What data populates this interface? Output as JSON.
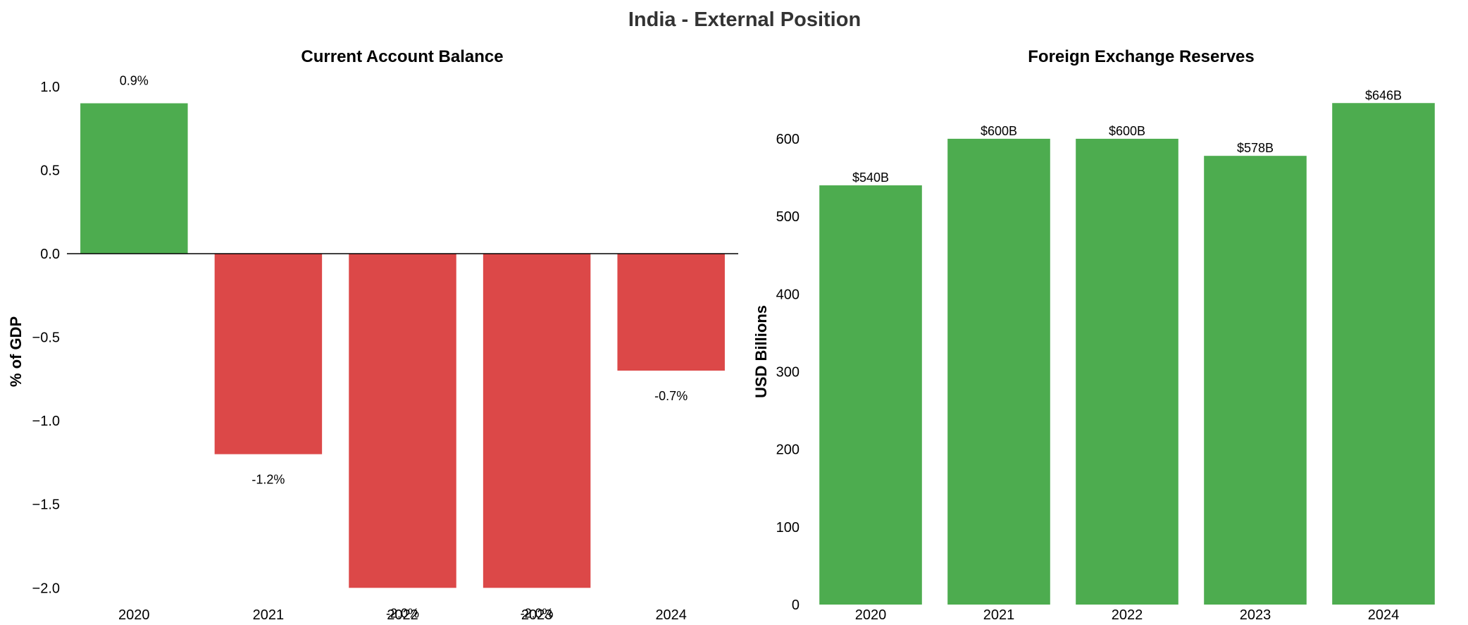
{
  "title": "India - External Position",
  "colors": {
    "positive": "#4dac4f",
    "negative": "#dc4848",
    "zero_line": "#000000"
  },
  "chart_data": [
    {
      "type": "bar",
      "title": "Current Account Balance",
      "xlabel": "",
      "ylabel": "% of GDP",
      "categories": [
        "2020",
        "2021",
        "2022",
        "2023",
        "2024"
      ],
      "values": [
        0.9,
        -1.2,
        -2.0,
        -2.0,
        -0.7
      ],
      "data_labels": [
        "0.9%",
        "-1.2%",
        "-2.0%",
        "-2.0%",
        "-0.7%"
      ],
      "ylim": [
        -2.1,
        1.05
      ],
      "yticks": [
        -2.0,
        -1.5,
        -1.0,
        -0.5,
        0.0,
        0.5,
        1.0
      ],
      "ytick_labels": [
        "−2.0",
        "−1.5",
        "−1.0",
        "−0.5",
        "0.0",
        "0.5",
        "1.0"
      ],
      "zero_line": true,
      "grid": false
    },
    {
      "type": "bar",
      "title": "Foreign Exchange Reserves",
      "xlabel": "",
      "ylabel": "USD Billions",
      "categories": [
        "2020",
        "2021",
        "2022",
        "2023",
        "2024"
      ],
      "values": [
        540,
        600,
        600,
        578,
        646
      ],
      "data_labels": [
        "$540B",
        "$600B",
        "$600B",
        "$578B",
        "$646B"
      ],
      "ylim": [
        0,
        678
      ],
      "yticks": [
        0,
        100,
        200,
        300,
        400,
        500,
        600
      ],
      "ytick_labels": [
        "0",
        "100",
        "200",
        "300",
        "400",
        "500",
        "600"
      ],
      "zero_line": false,
      "grid": false
    }
  ]
}
